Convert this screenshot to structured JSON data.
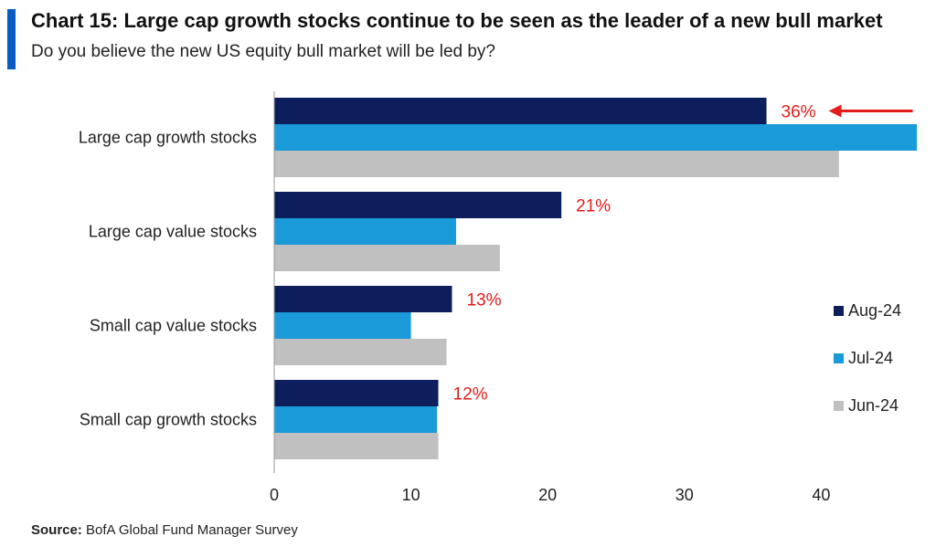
{
  "title": "Chart 15: Large cap growth stocks continue to be seen as the leader of a new bull market",
  "subtitle": "Do you believe the new US equity bull market will be led by?",
  "source": {
    "label": "Source:",
    "text": "BofA Global Fund Manager Survey"
  },
  "colors": {
    "accent": "#0a5cc2",
    "annotation": "#e31b1b"
  },
  "chart_data": {
    "type": "bar",
    "orientation": "horizontal",
    "categories": [
      "Large cap growth stocks",
      "Large cap value stocks",
      "Small cap value stocks",
      "Small cap growth stocks"
    ],
    "series": [
      {
        "name": "Aug-24",
        "color": "#0c1f5c",
        "values": [
          36,
          21,
          13,
          12
        ]
      },
      {
        "name": "Jul-24",
        "color": "#1a9ad9",
        "values": [
          47,
          13.3,
          10,
          11.9
        ]
      },
      {
        "name": "Jun-24",
        "color": "#c0c0c0",
        "values": [
          41.3,
          16.5,
          12.6,
          12
        ]
      }
    ],
    "data_labels": [
      "36%",
      "21%",
      "13%",
      "12%"
    ],
    "annotation": "arrow pointing to 36%",
    "xlim": [
      0,
      47
    ],
    "xticks": [
      0,
      10,
      20,
      30,
      40
    ],
    "legend": "right",
    "grid": false,
    "xlabel": "",
    "ylabel": ""
  }
}
